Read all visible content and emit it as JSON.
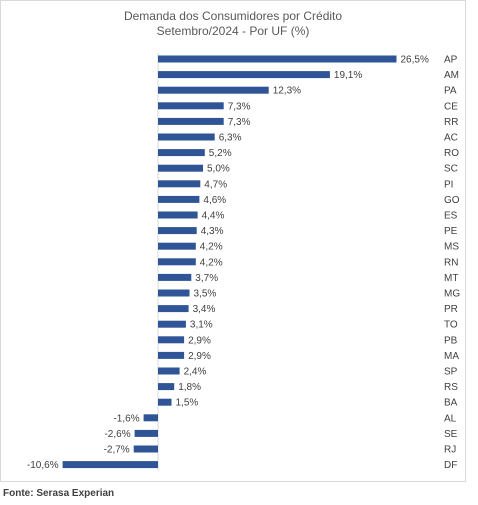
{
  "chart_data": {
    "type": "bar",
    "orientation": "horizontal",
    "title": "Demanda dos Consumidores por Crédito",
    "subtitle": "Setembro/2024 - Por UF (%)",
    "categories": [
      "AP",
      "AM",
      "PA",
      "CE",
      "RR",
      "AC",
      "RO",
      "SC",
      "PI",
      "GO",
      "ES",
      "PE",
      "MS",
      "RN",
      "MT",
      "MG",
      "PR",
      "TO",
      "PB",
      "MA",
      "SP",
      "RS",
      "BA",
      "AL",
      "SE",
      "RJ",
      "DF"
    ],
    "values": [
      26.5,
      19.1,
      12.3,
      7.3,
      7.3,
      6.3,
      5.2,
      5.0,
      4.7,
      4.6,
      4.4,
      4.3,
      4.2,
      4.2,
      3.7,
      3.5,
      3.4,
      3.1,
      2.9,
      2.9,
      2.4,
      1.8,
      1.5,
      -1.6,
      -2.6,
      -2.7,
      -10.6
    ],
    "data_labels": [
      "26,5%",
      "19,1%",
      "12,3%",
      "7,3%",
      "7,3%",
      "6,3%",
      "5,2%",
      "5,0%",
      "4,7%",
      "4,6%",
      "4,4%",
      "4,3%",
      "4,2%",
      "4,2%",
      "3,7%",
      "3,5%",
      "3,4%",
      "3,1%",
      "2,9%",
      "2,9%",
      "2,4%",
      "1,8%",
      "1,5%",
      "-1,6%",
      "-2,6%",
      "-2,7%",
      "-10,6%"
    ],
    "bar_color": "#2f5597",
    "grid": false,
    "legend": "none"
  },
  "source": "Fonte: Serasa Experian"
}
